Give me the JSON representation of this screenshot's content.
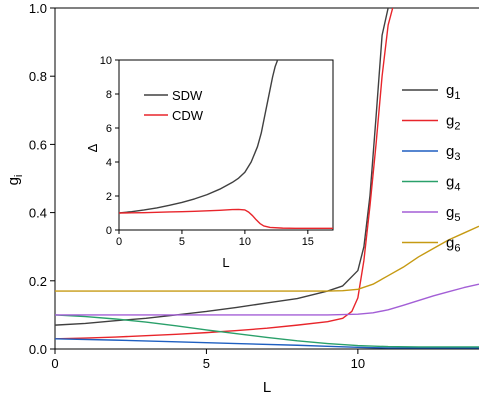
{
  "chart_data": [
    {
      "type": "line",
      "xlabel": "L",
      "ylabel": "g",
      "ylabel_subscript": "i",
      "xlim": [
        0,
        14
      ],
      "ylim": [
        0,
        1.0
      ],
      "xticks": [
        {
          "value": 0,
          "label": "0"
        },
        {
          "value": 5,
          "label": "5"
        },
        {
          "value": 10,
          "label": "10"
        }
      ],
      "yticks": [
        {
          "value": 0.0,
          "label": "0.0"
        },
        {
          "value": 0.2,
          "label": "0.2"
        },
        {
          "value": 0.4,
          "label": "0.4"
        },
        {
          "value": 0.6,
          "label": "0.6"
        },
        {
          "value": 0.8,
          "label": "0.8"
        },
        {
          "value": 1.0,
          "label": "1.0"
        }
      ],
      "grid": false,
      "legend_position": "right",
      "series": [
        {
          "name": "g",
          "subscript": "1",
          "color": "#404040",
          "x": [
            0,
            1,
            2,
            3,
            4,
            5,
            6,
            7,
            8,
            9,
            9.5,
            10,
            10.2,
            10.4,
            10.6,
            10.8,
            11.0
          ],
          "y": [
            0.07,
            0.075,
            0.083,
            0.09,
            0.1,
            0.11,
            0.122,
            0.135,
            0.148,
            0.17,
            0.185,
            0.23,
            0.3,
            0.45,
            0.68,
            0.92,
            1.0
          ]
        },
        {
          "name": "g",
          "subscript": "2",
          "color": "#e8252b",
          "x": [
            0,
            1,
            2,
            3,
            4,
            5,
            6,
            7,
            8,
            9,
            9.5,
            9.8,
            10,
            10.2,
            10.4,
            10.6,
            10.8,
            11.0,
            11.15
          ],
          "y": [
            0.03,
            0.032,
            0.035,
            0.039,
            0.043,
            0.048,
            0.054,
            0.061,
            0.07,
            0.08,
            0.09,
            0.11,
            0.15,
            0.26,
            0.42,
            0.6,
            0.8,
            0.95,
            1.0
          ]
        },
        {
          "name": "g",
          "subscript": "3",
          "color": "#1f5fc0",
          "x": [
            0,
            2,
            4,
            6,
            8,
            9,
            10,
            10.5,
            11,
            12,
            13,
            14
          ],
          "y": [
            0.03,
            0.026,
            0.021,
            0.016,
            0.011,
            0.008,
            0.005,
            0.004,
            0.003,
            0.003,
            0.003,
            0.003
          ]
        },
        {
          "name": "g",
          "subscript": "4",
          "color": "#2aa06a",
          "x": [
            0,
            1,
            2,
            3,
            4,
            5,
            6,
            7,
            8,
            9,
            10,
            11,
            12,
            13,
            14
          ],
          "y": [
            0.1,
            0.095,
            0.088,
            0.079,
            0.068,
            0.056,
            0.045,
            0.034,
            0.024,
            0.016,
            0.01,
            0.007,
            0.006,
            0.006,
            0.006
          ]
        },
        {
          "name": "g",
          "subscript": "5",
          "color": "#a35fd6",
          "x": [
            0,
            2,
            4,
            6,
            8,
            9,
            10,
            10.5,
            11,
            11.5,
            12,
            12.5,
            13,
            13.5,
            14
          ],
          "y": [
            0.1,
            0.1,
            0.1,
            0.1,
            0.1,
            0.1,
            0.102,
            0.106,
            0.115,
            0.128,
            0.142,
            0.156,
            0.168,
            0.18,
            0.19
          ]
        },
        {
          "name": "g",
          "subscript": "6",
          "color": "#c69a13",
          "x": [
            0,
            2,
            4,
            6,
            8,
            9,
            9.5,
            10,
            10.5,
            11,
            11.5,
            12,
            12.5,
            13,
            13.5,
            14
          ],
          "y": [
            0.17,
            0.17,
            0.17,
            0.17,
            0.17,
            0.17,
            0.171,
            0.175,
            0.19,
            0.215,
            0.24,
            0.27,
            0.295,
            0.32,
            0.34,
            0.36
          ]
        }
      ]
    },
    {
      "type": "line",
      "inset": true,
      "xlabel": "L",
      "ylabel": "Δ",
      "xlim": [
        0,
        17
      ],
      "ylim": [
        0,
        10
      ],
      "xticks": [
        {
          "value": 0,
          "label": "0"
        },
        {
          "value": 5,
          "label": "5"
        },
        {
          "value": 10,
          "label": "10"
        },
        {
          "value": 15,
          "label": "15"
        }
      ],
      "yticks": [
        {
          "value": 0,
          "label": "0"
        },
        {
          "value": 2,
          "label": "2"
        },
        {
          "value": 4,
          "label": "4"
        },
        {
          "value": 6,
          "label": "6"
        },
        {
          "value": 8,
          "label": "8"
        },
        {
          "value": 10,
          "label": "10"
        }
      ],
      "grid": false,
      "legend_position": "top-left",
      "series": [
        {
          "name": "SDW",
          "color": "#404040",
          "x": [
            0,
            1,
            2,
            3,
            4,
            5,
            6,
            7,
            8,
            9,
            9.5,
            10,
            10.5,
            11,
            11.3,
            11.6,
            11.9,
            12.2,
            12.4,
            12.6
          ],
          "y": [
            1.0,
            1.08,
            1.18,
            1.3,
            1.45,
            1.62,
            1.83,
            2.08,
            2.4,
            2.8,
            3.05,
            3.4,
            4.0,
            4.9,
            5.7,
            6.8,
            7.9,
            9.0,
            9.6,
            10.0
          ]
        },
        {
          "name": "CDW",
          "color": "#e8252b",
          "x": [
            0,
            1,
            2,
            3,
            4,
            5,
            6,
            7,
            8,
            9,
            9.5,
            10,
            10.3,
            10.6,
            10.9,
            11.2,
            11.5,
            12,
            13,
            14,
            15,
            16,
            17
          ],
          "y": [
            1.0,
            1.01,
            1.02,
            1.04,
            1.06,
            1.08,
            1.1,
            1.13,
            1.16,
            1.2,
            1.21,
            1.18,
            1.05,
            0.85,
            0.6,
            0.38,
            0.24,
            0.15,
            0.11,
            0.1,
            0.1,
            0.1,
            0.1
          ]
        }
      ]
    }
  ]
}
